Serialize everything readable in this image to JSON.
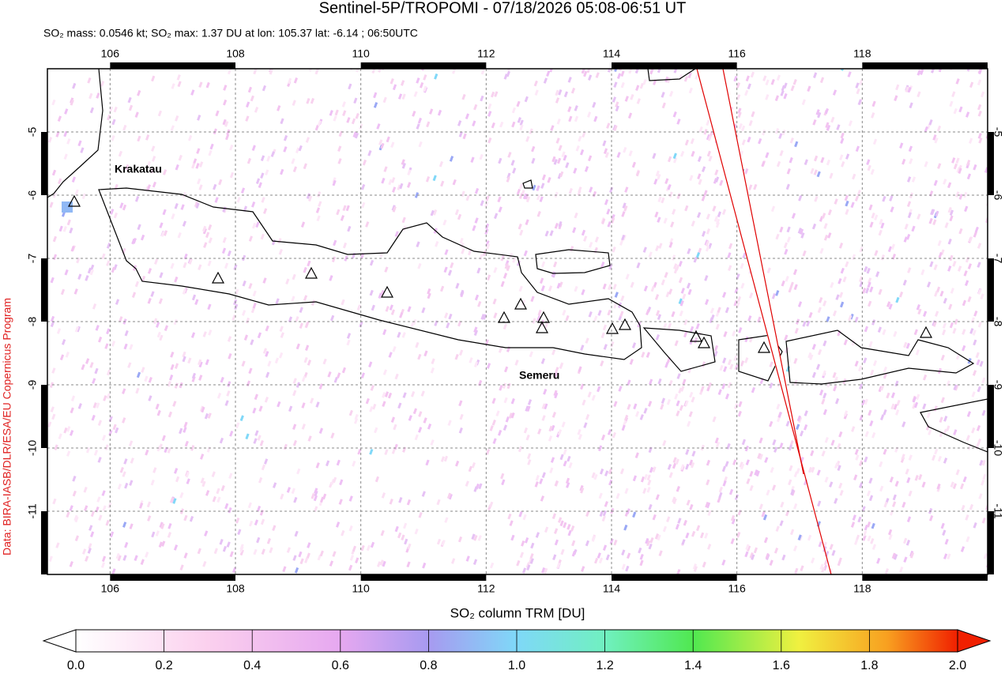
{
  "title": "Sentinel-5P/TROPOMI - 07/18/2026 05:08-06:51 UT",
  "subtitle": "SO₂ mass: 0.0546 kt; SO₂ max: 1.37 DU at lon: 105.37 lat: -6.14 ; 06:50UTC",
  "credit": "Data: BIRA-IASB/DLR/ESA/EU Copernicus Program",
  "map": {
    "xlim": [
      105,
      120
    ],
    "ylim": [
      -12,
      -4
    ],
    "lon_ticks": [
      106,
      108,
      110,
      112,
      114,
      116,
      118
    ],
    "lat_ticks": [
      -5,
      -6,
      -7,
      -8,
      -9,
      -10,
      -11
    ],
    "labels": [
      "Krakatau",
      "Semeru"
    ]
  },
  "colorbar": {
    "label": "SO₂ column TRM [DU]",
    "lim": [
      0,
      2
    ],
    "ticks": [
      {
        "value": 0,
        "label": "0.0"
      },
      {
        "value": 0.2,
        "label": "0.2"
      },
      {
        "value": 0.4,
        "label": "0.4"
      },
      {
        "value": 0.6,
        "label": "0.6"
      },
      {
        "value": 0.8,
        "label": "0.8"
      },
      {
        "value": 1.0,
        "label": "1.0"
      },
      {
        "value": 1.2,
        "label": "1.2"
      },
      {
        "value": 1.4,
        "label": "1.4"
      },
      {
        "value": 1.6,
        "label": "1.6"
      },
      {
        "value": 1.8,
        "label": "1.8"
      },
      {
        "value": 2.0,
        "label": "2.0"
      }
    ]
  }
}
